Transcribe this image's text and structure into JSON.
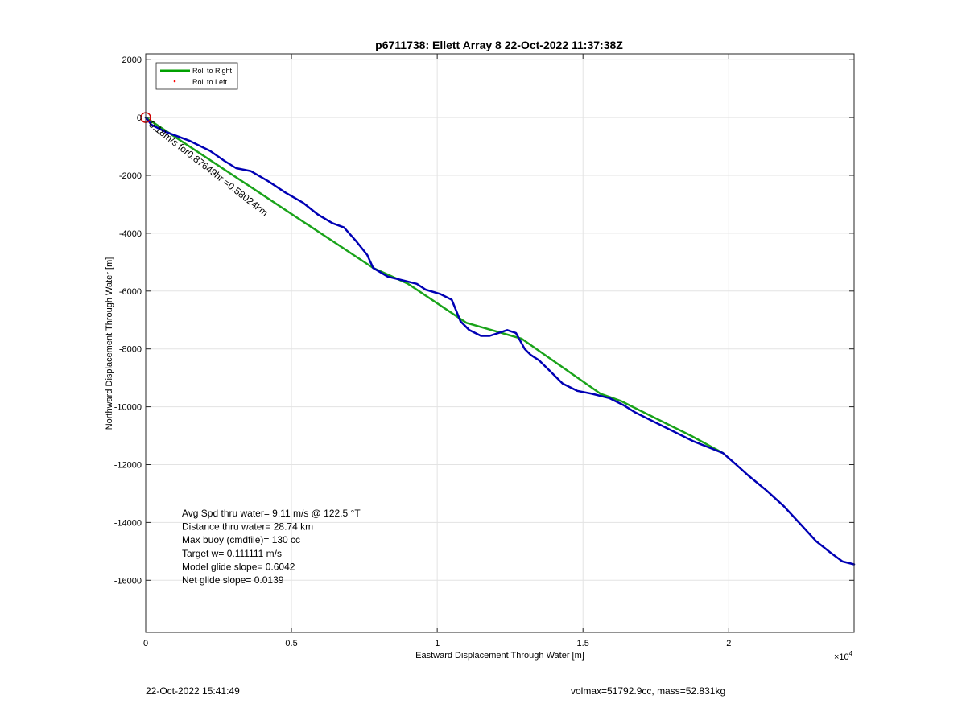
{
  "chart_data": {
    "type": "line",
    "title": "p6711738: Ellett Array 8 22-Oct-2022 11:37:38Z",
    "xlabel": "Eastward Displacement Through Water [m]",
    "ylabel": "Northward Displacement Through Water [m]",
    "x_exponent_label": "×10",
    "x_exponent": "4",
    "xlim": [
      0,
      24300
    ],
    "ylim": [
      -17800,
      2200
    ],
    "x_ticks": [
      0,
      5000,
      10000,
      15000,
      20000
    ],
    "x_tick_labels": [
      "0",
      "0.5",
      "1",
      "1.5",
      "2"
    ],
    "y_ticks": [
      2000,
      0,
      -2000,
      -4000,
      -6000,
      -8000,
      -10000,
      -12000,
      -14000,
      -16000
    ],
    "y_tick_labels": [
      "2000",
      "0",
      "-2000",
      "-4000",
      "-6000",
      "-8000",
      "-10000",
      "-12000",
      "-14000",
      "-16000"
    ],
    "grid": true,
    "legend_position": "top-left",
    "legend": [
      {
        "label": "Roll to Right",
        "color": "#00a000",
        "marker": "line"
      },
      {
        "label": "Roll to Left",
        "color": "#ff0000",
        "marker": "dot"
      }
    ],
    "series": [
      {
        "name": "Roll to Right",
        "color": "#1aa31a",
        "x": [
          0,
          7800,
          9000,
          11000,
          12900,
          15600,
          16300,
          17500,
          18700,
          19800
        ],
        "y": [
          0,
          -5200,
          -5750,
          -7100,
          -7650,
          -9550,
          -9800,
          -10400,
          -11000,
          -11600
        ]
      },
      {
        "name": "",
        "color": "#0000b4",
        "x": [
          0,
          200,
          700,
          1500,
          2200,
          2700,
          3100,
          3600,
          4200,
          4800,
          5400,
          5900,
          6400,
          6800,
          7200,
          7600,
          7800,
          8300,
          8900,
          9300,
          9600,
          10100,
          10500,
          10800,
          11100,
          11500,
          11800,
          12100,
          12400,
          12700,
          13000,
          13200,
          13500,
          13900,
          14300,
          14800,
          15300,
          15900,
          16400,
          16800,
          17400,
          17800,
          18300,
          18800,
          19300,
          19800,
          20200,
          20700,
          21300,
          21900,
          22500,
          23000,
          23500,
          23900,
          24300
        ],
        "y": [
          0,
          -250,
          -500,
          -800,
          -1150,
          -1500,
          -1750,
          -1850,
          -2200,
          -2600,
          -2950,
          -3350,
          -3650,
          -3800,
          -4250,
          -4750,
          -5200,
          -5500,
          -5650,
          -5750,
          -5950,
          -6100,
          -6300,
          -7050,
          -7350,
          -7550,
          -7550,
          -7450,
          -7350,
          -7450,
          -8000,
          -8200,
          -8400,
          -8800,
          -9200,
          -9450,
          -9550,
          -9700,
          -9950,
          -10200,
          -10500,
          -10700,
          -10950,
          -11200,
          -11400,
          -11600,
          -11950,
          -12400,
          -12900,
          -13450,
          -14100,
          -14650,
          -15050,
          -15350,
          -15450
        ]
      }
    ],
    "start_marker": {
      "x": 0,
      "y": 0,
      "color": "#d00000"
    },
    "start_label": "0.18m/s for0.87649hr =0.58024km",
    "annotations": [
      "Avg Spd thru water=  9.11 m/s @ 122.5 °T",
      "Distance thru water= 28.74 km",
      "Max buoy (cmdfile)= 130 cc",
      "Target w= 0.111111 m/s",
      "Model glide slope= 0.6042",
      "Net glide slope= 0.0139"
    ]
  },
  "footer": {
    "left": "22-Oct-2022 15:41:49",
    "right": "volmax=51792.9cc, mass=52.831kg"
  }
}
